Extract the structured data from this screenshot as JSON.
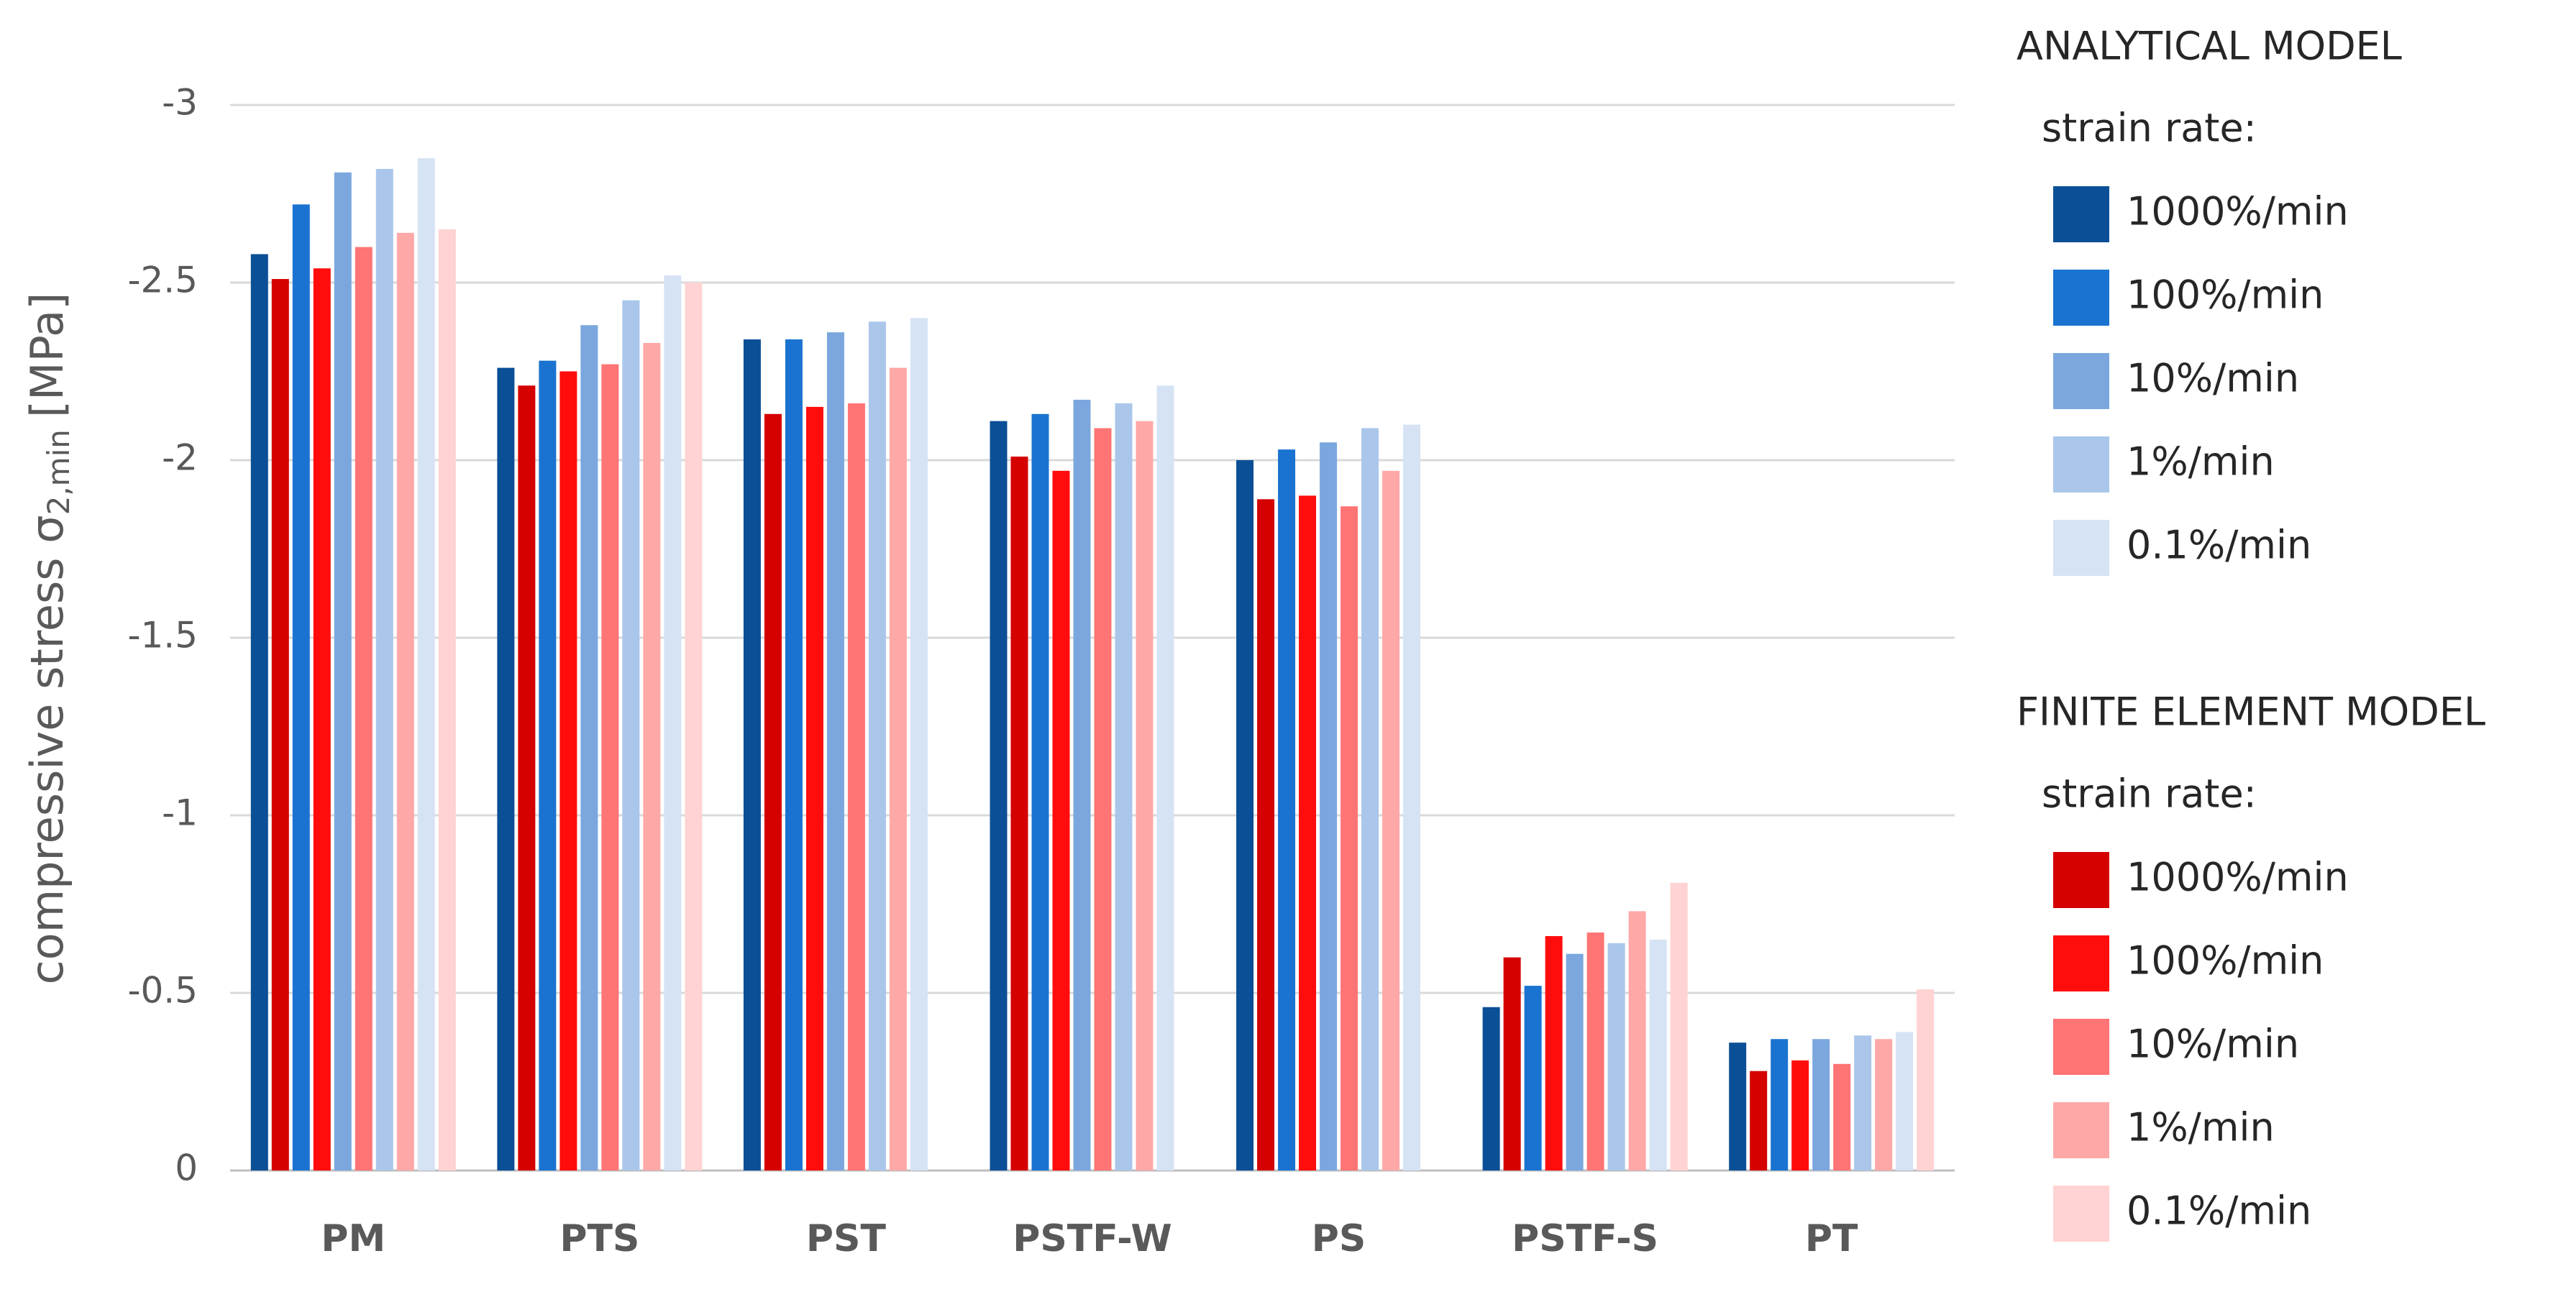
{
  "chart_data": {
    "type": "bar",
    "ylabel": [
      "compressive stress σ",
      "2,min",
      "[MPa]"
    ],
    "categories": [
      "PM",
      "PTS",
      "PST",
      "PSTF-W",
      "PS",
      "PSTF-S",
      "PT"
    ],
    "ylim": [
      0,
      -3
    ],
    "yticks": [
      0,
      -0.5,
      -1,
      -1.5,
      -2,
      -2.5,
      -3
    ],
    "grid": true,
    "series_groups": [
      {
        "title": "ANALYTICAL MODEL",
        "subtitle": "strain rate:",
        "series": [
          {
            "name": "1000%/min",
            "color": "#0b4f96",
            "values": [
              -2.58,
              -2.26,
              -2.34,
              -2.11,
              -2.0,
              -0.46,
              -0.36
            ]
          },
          {
            "name": "100%/min",
            "color": "#1a73d0",
            "values": [
              -2.72,
              -2.28,
              -2.34,
              -2.13,
              -2.03,
              -0.52,
              -0.37
            ]
          },
          {
            "name": "10%/min",
            "color": "#7ba7de",
            "values": [
              -2.81,
              -2.38,
              -2.36,
              -2.17,
              -2.05,
              -0.61,
              -0.37
            ]
          },
          {
            "name": "1%/min",
            "color": "#aac6ea",
            "values": [
              -2.82,
              -2.45,
              -2.39,
              -2.16,
              -2.09,
              -0.64,
              -0.38
            ]
          },
          {
            "name": "0.1%/min",
            "color": "#d6e3f5",
            "values": [
              -2.85,
              -2.52,
              -2.4,
              -2.21,
              -2.1,
              -0.65,
              -0.39
            ]
          }
        ]
      },
      {
        "title": "FINITE ELEMENT MODEL",
        "subtitle": "strain rate:",
        "series": [
          {
            "name": "1000%/min",
            "color": "#d50000",
            "values": [
              -2.51,
              -2.21,
              -2.13,
              -2.01,
              -1.89,
              -0.6,
              -0.28
            ]
          },
          {
            "name": "100%/min",
            "color": "#ff0d0d",
            "values": [
              -2.54,
              -2.25,
              -2.15,
              -1.97,
              -1.9,
              -0.66,
              -0.31
            ]
          },
          {
            "name": "10%/min",
            "color": "#ff7474",
            "values": [
              -2.6,
              -2.27,
              -2.16,
              -2.09,
              -1.87,
              -0.67,
              -0.3
            ]
          },
          {
            "name": "1%/min",
            "color": "#ffa8a8",
            "values": [
              -2.64,
              -2.33,
              -2.26,
              -2.11,
              -1.97,
              -0.73,
              -0.37
            ]
          },
          {
            "name": "0.1%/min",
            "color": "#ffd3d3",
            "values": [
              -2.65,
              -2.5,
              null,
              null,
              null,
              -0.81,
              -0.51
            ]
          }
        ]
      }
    ]
  }
}
